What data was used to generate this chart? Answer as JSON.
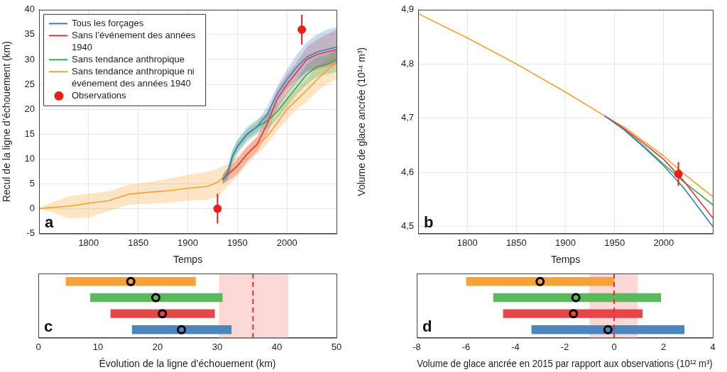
{
  "chart_data": [
    {
      "type": "line",
      "xlabel": "Temps",
      "ylabel": "Recul de la ligne d’échouement (km)",
      "xlim": [
        1750,
        2050
      ],
      "xticks": [
        1800,
        1850,
        1900,
        1950,
        2000
      ],
      "ylim": [
        -5,
        40
      ],
      "yticks": [
        -5,
        0,
        5,
        10,
        15,
        20,
        25,
        30,
        35,
        40
      ],
      "grid": true,
      "legend": "top left",
      "annotations": [
        "a"
      ],
      "series": [
        {
          "name": "Tous les forçages",
          "color": "#3b80ba",
          "x": [
            1935,
            1940,
            1945,
            1950,
            1960,
            1970,
            1980,
            1990,
            2000,
            2010,
            2020,
            2030,
            2040,
            2050
          ],
          "values": [
            5.8,
            7,
            10.5,
            12.5,
            15,
            16.5,
            19,
            23,
            26,
            28.5,
            30.5,
            31.5,
            32,
            32.5
          ],
          "lower": [
            5,
            6,
            9.5,
            11.5,
            14,
            15.5,
            17.5,
            21,
            24,
            26,
            27.5,
            28.5,
            29,
            29.5
          ],
          "upper": [
            6.5,
            8,
            11.5,
            13.5,
            16,
            17.5,
            20.5,
            24.5,
            28,
            31,
            33.5,
            35,
            36,
            36.5
          ]
        },
        {
          "name": "Sans l’événement des années 1940",
          "color": "#e0383c",
          "x": [
            1935,
            1940,
            1950,
            1960,
            1970,
            1980,
            1990,
            2000,
            2010,
            2020,
            2030,
            2040,
            2050
          ],
          "values": [
            6,
            6.8,
            8.6,
            11,
            13,
            17,
            22,
            25,
            27.5,
            30,
            31,
            31.5,
            32
          ],
          "lower": [
            5,
            5.5,
            7,
            9.5,
            11.5,
            15,
            20,
            23,
            25.5,
            27.5,
            28,
            28.5,
            29
          ],
          "upper": [
            7,
            8,
            10,
            12.5,
            14.5,
            19,
            24,
            27,
            29.5,
            32.5,
            34,
            35,
            36
          ]
        },
        {
          "name": "Sans tendance anthropique",
          "color": "#3aa648",
          "x": [
            1935,
            1940,
            1945,
            1950,
            1960,
            1970,
            1980,
            1990,
            2000,
            2010,
            2020,
            2030,
            2040,
            2050
          ],
          "values": [
            5.8,
            7,
            10.5,
            12.5,
            15,
            16.5,
            17.6,
            19.5,
            22,
            24.5,
            27,
            28.5,
            29,
            30
          ],
          "lower": [
            5,
            6,
            9,
            11,
            13.5,
            15,
            16,
            18,
            20.5,
            23,
            25,
            26.5,
            27,
            27.5
          ],
          "upper": [
            6.5,
            8,
            12,
            14,
            16.5,
            18,
            19.2,
            21,
            23.5,
            26,
            29,
            30.5,
            31,
            32
          ]
        },
        {
          "name": "Sans tendance anthropique ni événement des années 1940",
          "color": "#f5a030",
          "x": [
            1750,
            1760,
            1780,
            1800,
            1820,
            1840,
            1860,
            1880,
            1900,
            1920,
            1930,
            1940,
            1950,
            1960,
            1970,
            1980,
            1990,
            2000,
            2010,
            2020,
            2030,
            2040,
            2050
          ],
          "values": [
            0,
            0.2,
            0.5,
            1.1,
            1.6,
            2.9,
            3.3,
            3.6,
            4.1,
            4.5,
            5.3,
            7,
            8.6,
            11,
            12.8,
            14.5,
            17.2,
            20,
            21.9,
            23.8,
            25.9,
            27.8,
            29.4
          ],
          "lower": [
            0,
            -0.5,
            -2,
            -1.8,
            -0.5,
            0.8,
            1,
            1.2,
            1.6,
            1.8,
            2.3,
            4.5,
            6.5,
            9,
            11,
            13,
            15.5,
            18,
            20,
            21.5,
            23.5,
            25,
            26
          ],
          "upper": [
            0.3,
            1,
            2.5,
            3,
            3.5,
            4.8,
            5.3,
            6,
            6.8,
            7.4,
            8,
            9,
            10.5,
            12.5,
            14.5,
            16,
            19,
            22,
            24,
            26,
            28.5,
            30.5,
            32
          ]
        },
        {
          "name": "Observations",
          "type": "scatter",
          "marker": "circle",
          "color": "#e8201c",
          "x": [
            1930,
            2015
          ],
          "values": [
            0,
            36
          ],
          "errors": [
            3,
            3
          ]
        }
      ]
    },
    {
      "type": "line",
      "xlabel": "Temps",
      "ylabel": "Volume de glace ancrée (10¹⁴ m³)",
      "xlim": [
        1750,
        2050
      ],
      "xticks": [
        1800,
        1850,
        1900,
        1950,
        2000
      ],
      "ylim": [
        4.487,
        4.9
      ],
      "yticks": [
        {
          "value": 4.5,
          "label": "4,5"
        },
        {
          "value": 4.6,
          "label": "4,6"
        },
        {
          "value": 4.7,
          "label": "4,7"
        },
        {
          "value": 4.8,
          "label": "4,8"
        },
        {
          "value": 4.9,
          "label": "4,9"
        }
      ],
      "grid": true,
      "annotations": [
        "b"
      ],
      "x": [
        1750,
        1800,
        1850,
        1900,
        1940,
        1960,
        1980,
        2000,
        2020,
        2050
      ],
      "series": [
        {
          "color": "#3b80ba",
          "values": [
            null,
            null,
            null,
            null,
            4.704,
            4.678,
            4.646,
            4.612,
            4.572,
            4.5
          ]
        },
        {
          "color": "#e0383c",
          "values": [
            null,
            null,
            null,
            null,
            4.704,
            4.68,
            4.653,
            4.624,
            4.585,
            4.516
          ]
        },
        {
          "color": "#3aa648",
          "values": [
            null,
            null,
            null,
            null,
            4.704,
            4.679,
            4.648,
            4.615,
            4.583,
            4.54
          ]
        },
        {
          "color": "#f5a030",
          "values": [
            4.893,
            4.848,
            4.8,
            4.748,
            4.704,
            4.683,
            4.657,
            4.63,
            4.598,
            4.555
          ]
        },
        {
          "type": "scatter",
          "marker": "circle",
          "color": "#e8201c",
          "x": [
            2015
          ],
          "values": [
            4.597
          ],
          "errors": [
            0.022
          ]
        }
      ]
    },
    {
      "type": "bar",
      "orientation": "horizontal",
      "xlabel": "Évolution de la ligne d’échouement (km)",
      "xlim": [
        0,
        50
      ],
      "xticks": [
        0,
        10,
        20,
        30,
        40,
        50
      ],
      "annotations": [
        "c"
      ],
      "categories": [
        null,
        null,
        null,
        null
      ],
      "bands": [
        {
          "axis": "x",
          "from": 30.3,
          "to": 41.9,
          "color": "#fcd9d6"
        }
      ],
      "ref_lines": [
        {
          "axis": "x",
          "value": 36,
          "color": "#e03030",
          "line_style": "dashed"
        }
      ],
      "series": [
        {
          "colors": [
            "#f5a338",
            "#5cb85c",
            "#e84646",
            "#4a86bf"
          ],
          "base": [
            4.6,
            8.7,
            12.1,
            15.7
          ],
          "values": [
            21.8,
            22.2,
            17.5,
            16.7
          ]
        },
        {
          "type": "scatter",
          "marker": "circle",
          "color": "#000000",
          "values": [
            15.5,
            19.7,
            20.8,
            24
          ]
        }
      ]
    },
    {
      "type": "bar",
      "orientation": "horizontal",
      "xlabel": "Volume de glace ancrée en 2015 par rapport aux observations (10¹² m³)",
      "xlim": [
        -8,
        4
      ],
      "xticks": [
        -8,
        -6,
        -4,
        -2,
        0,
        2,
        4
      ],
      "annotations": [
        "d"
      ],
      "categories": [
        null,
        null,
        null,
        null
      ],
      "bands": [
        {
          "axis": "x",
          "from": -1,
          "to": 0.95,
          "color": "#fcd9d6"
        }
      ],
      "ref_lines": [
        {
          "axis": "x",
          "value": 0,
          "color": "#e03030",
          "line_style": "dashed"
        }
      ],
      "series": [
        {
          "colors": [
            "#f5a338",
            "#5cb85c",
            "#e84646",
            "#4a86bf"
          ],
          "base": [
            -6,
            -4.9,
            -4.5,
            -3.35
          ],
          "values": [
            6,
            6.8,
            5.65,
            6.2
          ]
        },
        {
          "type": "scatter",
          "marker": "circle",
          "color": "#000000",
          "values": [
            -3,
            -1.55,
            -1.65,
            -0.25
          ]
        }
      ]
    }
  ]
}
